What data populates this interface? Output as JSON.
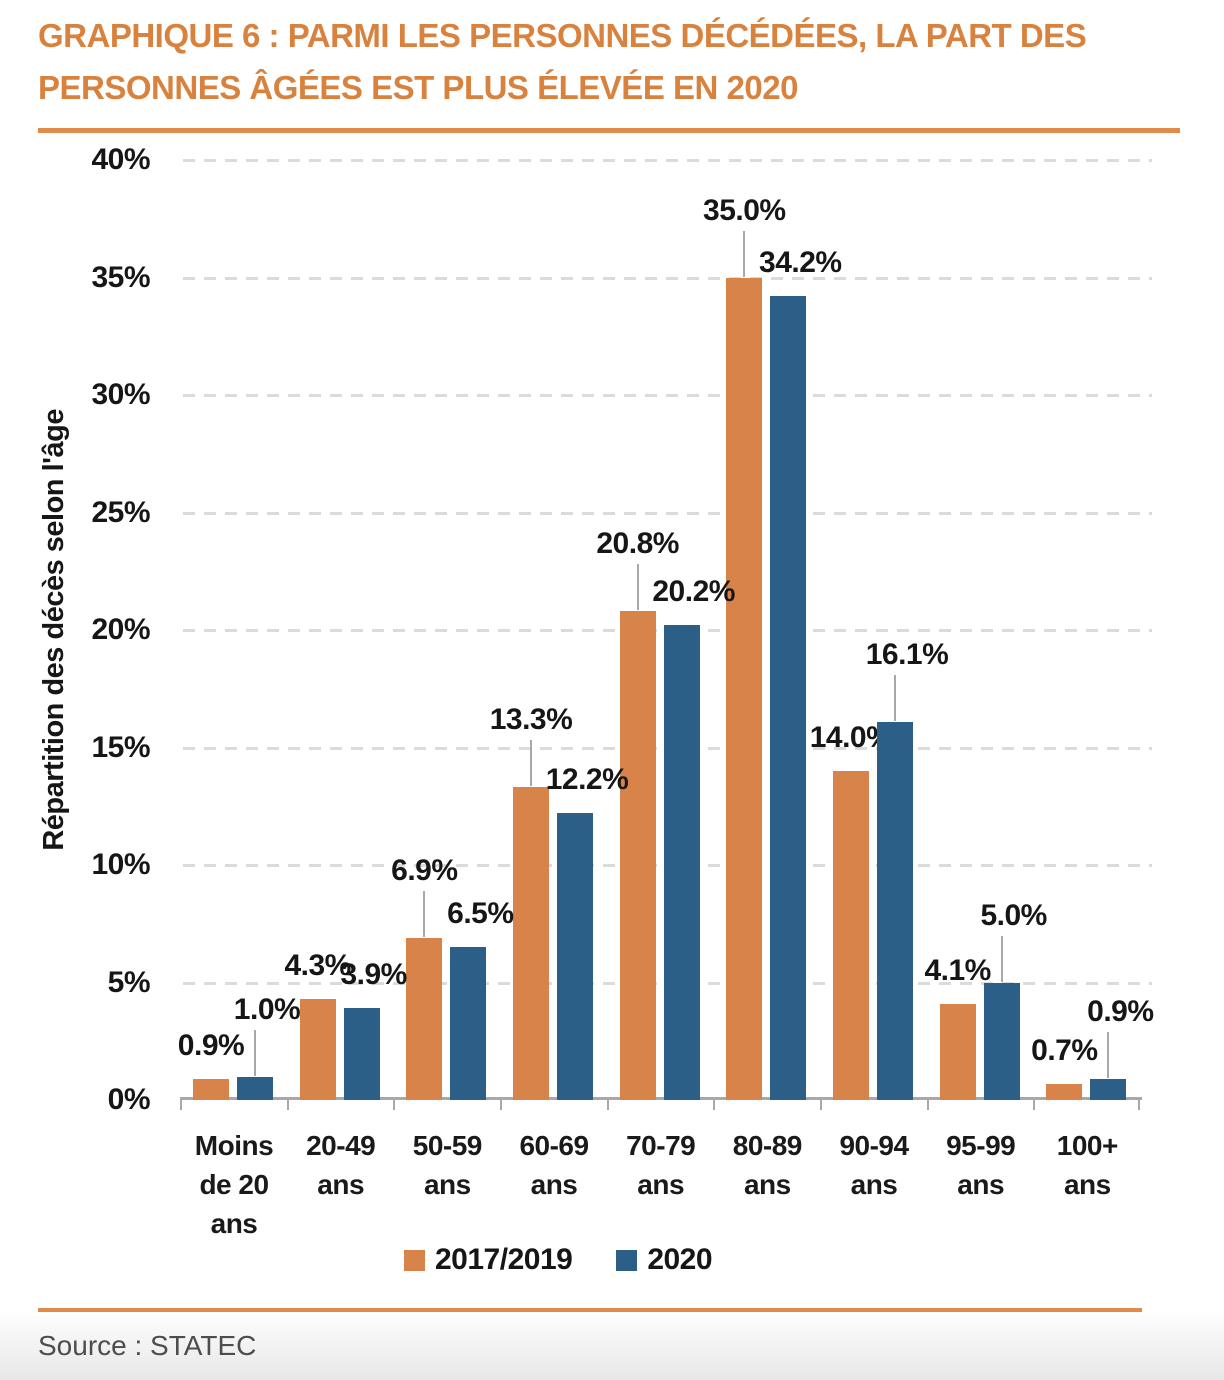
{
  "title_lines": [
    "GRAPHIQUE 6 : PARMI LES PERSONNES DÉCÉDÉES, LA PART DES",
    "PERSONNES ÂGÉES EST PLUS ÉLEVÉE EN 2020"
  ],
  "source": "Source : STATEC",
  "colors": {
    "accent_orange": "#DF8A45",
    "title_orange": "#D9823E",
    "series_2017_2019": "#D8834A",
    "series_2020": "#2B5F88",
    "gridline": "#DBDBDB",
    "axis": "#A8A8A8",
    "text": "#161616",
    "source_text": "#4D4D4D"
  },
  "chart_data": {
    "type": "bar",
    "title": "GRAPHIQUE 6 : PARMI LES PERSONNES DÉCÉDÉES, LA PART DES PERSONNES ÂGÉES EST PLUS ÉLEVÉE EN 2020",
    "ylabel": "Répartition des décès selon l'âge",
    "xlabel": "",
    "ylim": [
      0,
      40
    ],
    "ytick_step": 5,
    "ytick_labels": [
      "0%",
      "5%",
      "10%",
      "15%",
      "20%",
      "25%",
      "30%",
      "35%",
      "40%"
    ],
    "grid": "horizontal-dashed",
    "legend_position": "bottom",
    "categories": [
      [
        "Moins",
        "de 20",
        "ans"
      ],
      [
        "20-49",
        "ans"
      ],
      [
        "50-59",
        "ans"
      ],
      [
        "60-69",
        "ans"
      ],
      [
        "70-79",
        "ans"
      ],
      [
        "80-89",
        "ans"
      ],
      [
        "90-94",
        "ans"
      ],
      [
        "95-99",
        "ans"
      ],
      [
        "100+",
        "ans"
      ]
    ],
    "series": [
      {
        "name": "2017/2019",
        "color": "#D8834A",
        "values": [
          0.9,
          4.3,
          6.9,
          13.3,
          20.8,
          35.0,
          14.0,
          4.1,
          0.7
        ],
        "labels": [
          "0.9%",
          "4.3%",
          "6.9%",
          "13.3%",
          "20.8%",
          "35.0%",
          "14.0%",
          "4.1%",
          "0.7%"
        ]
      },
      {
        "name": "2020",
        "color": "#2B5F88",
        "values": [
          1.0,
          3.9,
          6.5,
          12.2,
          20.2,
          34.2,
          16.1,
          5.0,
          0.9
        ],
        "labels": [
          "1.0%",
          "3.9%",
          "6.5%",
          "12.2%",
          "20.2%",
          "34.2%",
          "16.1%",
          "5.0%",
          "0.9%"
        ]
      }
    ],
    "callouts": [
      "2020",
      null,
      "2017/2019",
      "2017/2019",
      "2017/2019",
      "2017/2019",
      "2020",
      "2020",
      "2020"
    ]
  }
}
